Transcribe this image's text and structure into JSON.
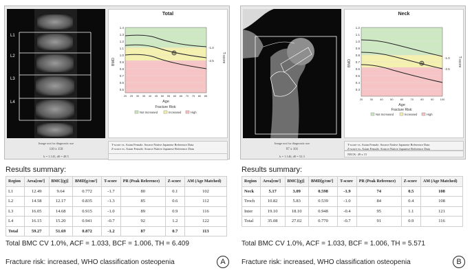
{
  "panel_a": {
    "chart_title": "Total",
    "regions_labels": [
      "L1",
      "L2",
      "L3",
      "L4"
    ],
    "y_axis_label": "BMD",
    "y_ticks": [
      "1.4",
      "1.3",
      "1.2",
      "1.1",
      "1.0",
      "0.9",
      "0.8",
      "0.7",
      "0.6",
      "0.5"
    ],
    "t_ticks": [
      "-1.0",
      "-2.5"
    ],
    "t_axis_label": "T-score",
    "x_ticks": [
      "20",
      "25",
      "30",
      "35",
      "40",
      "45",
      "50",
      "55",
      "60",
      "65",
      "70",
      "75",
      "80",
      "85"
    ],
    "x_axis_label": "Age",
    "fracture_label": "Fracture Risk:",
    "legend": [
      "Not Increased",
      "Increased",
      "High"
    ],
    "scan_caption": "Image not for diagnostic use",
    "scan_size": "110 x 150",
    "scan_k": "k = 1.143, d0 = 48.5",
    "ref_text_1": "T-score vs. Asian Female. Source:Native Japanese Reference Data",
    "ref_text_2": "Z-score vs. Asian Female. Source:Native Japanese Reference Data",
    "summary_title": "Results summary:",
    "table": {
      "headers": [
        "Region",
        "Area[cm²]",
        "BMC[(g)]",
        "BMD[g/cm²]",
        "T-score",
        "PR (Peak Reference)",
        "Z-score",
        "AM (Age Matched)"
      ],
      "rows": [
        [
          "L1",
          "12.49",
          "9.64",
          "0.772",
          "-1.7",
          "80",
          "0.1",
          "102"
        ],
        [
          "L2",
          "14.58",
          "12.17",
          "0.835",
          "-1.3",
          "85",
          "0.6",
          "112"
        ],
        [
          "L3",
          "16.05",
          "14.68",
          "0.915",
          "-1.0",
          "89",
          "0.9",
          "116"
        ],
        [
          "L4",
          "16.15",
          "15.20",
          "0.941",
          "-0.7",
          "92",
          "1.2",
          "122"
        ],
        [
          "Total",
          "59.27",
          "51.69",
          "0.872",
          "-1.2",
          "87",
          "0.7",
          "113"
        ]
      ]
    },
    "footer_line1": "Total BMC CV 1.0%, ACF = 1.033, BCF = 1.006, TH = 6.409",
    "footer_line2": "Fracture risk: increased, WHO classification osteopenia",
    "circle": "A"
  },
  "panel_b": {
    "chart_title": "Neck",
    "y_axis_label": "BMD",
    "y_ticks": [
      "1.2",
      "1.1",
      "1.0",
      "0.9",
      "0.8",
      "0.7",
      "0.6",
      "0.5",
      "0.4",
      "0.3"
    ],
    "t_ticks": [
      "-1.0",
      "-2.5"
    ],
    "t_axis_label": "T-score",
    "x_ticks": [
      "20",
      "30",
      "40",
      "50",
      "60",
      "70",
      "80",
      "90",
      "100"
    ],
    "x_axis_label": "Age",
    "fracture_label": "Fracture Risk:",
    "legend": [
      "Not Increased",
      "Increased",
      "High"
    ],
    "scan_caption": "Image not for diagnostic use",
    "scan_size": "97 x 101",
    "ref_text_1": "T-score vs. Asian Female. Source:Native Japanese Reference Data",
    "ref_text_2": "Z-score vs. Asian Female. Source:Native Japanese Reference Data",
    "neck_size": "NECK: 49 x 15",
    "scan_k": "k = 1.146, d0 = 52.3",
    "summary_title": "Results summary:",
    "table": {
      "headers": [
        "Region",
        "Area[cm²]",
        "BMC[(g)]",
        "BMD[g/cm²]",
        "T-score",
        "PR (Peak Reference)",
        "Z-score",
        "AM (Age Matched)"
      ],
      "rows": [
        [
          "Neck",
          "5.17",
          "3.09",
          "0.598",
          "-1.9",
          "74",
          "0.5",
          "108"
        ],
        [
          "Troch",
          "10.82",
          "5.83",
          "0.539",
          "-1.0",
          "84",
          "0.4",
          "108"
        ],
        [
          "Inter",
          "19.10",
          "18.10",
          "0.948",
          "-0.4",
          "95",
          "1.1",
          "121"
        ],
        [
          "Total",
          "35.08",
          "27.02",
          "0.770",
          "-0.7",
          "91",
          "0.9",
          "116"
        ]
      ]
    },
    "footer_line1": "Total BMC CV 1.0%, ACF = 1.033, BCF = 1.006, TH = 5.571",
    "footer_line2": "Fracture risk: increased, WHO classification osteopenia",
    "circle": "B"
  },
  "colors": {
    "green_zone": "#cfe8c4",
    "yellow_zone": "#f3f0b0",
    "red_zone": "#f6c4c4"
  }
}
